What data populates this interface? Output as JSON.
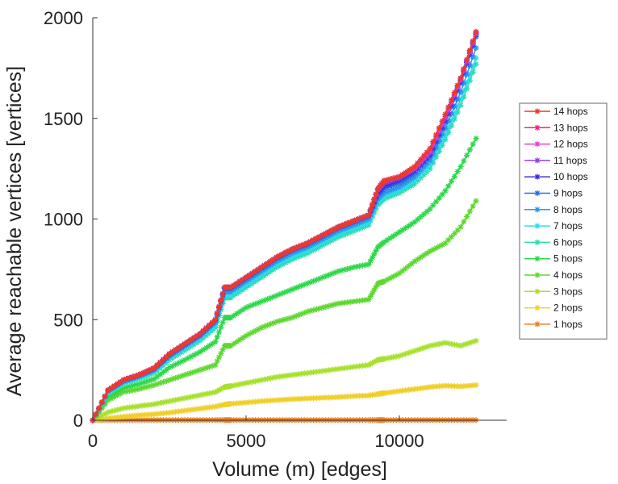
{
  "chart_data": {
    "type": "line",
    "xlabel": "Volume (m) [edges]",
    "ylabel": "Average reachable vertices [vertices]",
    "xlim": [
      0,
      13500
    ],
    "ylim": [
      0,
      2000
    ],
    "xticks": [
      0,
      5000,
      10000
    ],
    "yticks": [
      0,
      500,
      1000,
      1500,
      2000
    ],
    "grid": false,
    "legend_position": "right",
    "marker": "star",
    "x": [
      0,
      500,
      1000,
      1500,
      2000,
      2500,
      3000,
      3500,
      4000,
      4300,
      4500,
      5000,
      5500,
      6000,
      6500,
      7000,
      7500,
      8000,
      8500,
      9000,
      9300,
      9500,
      10000,
      10500,
      11000,
      11500,
      12000,
      12500
    ],
    "series": [
      {
        "name": "14 hops",
        "color": "#e83a2e",
        "values": [
          0,
          150,
          200,
          225,
          260,
          330,
          380,
          430,
          500,
          660,
          660,
          710,
          760,
          810,
          850,
          880,
          920,
          960,
          990,
          1020,
          1150,
          1190,
          1210,
          1260,
          1350,
          1520,
          1700,
          1930
        ]
      },
      {
        "name": "13 hops",
        "color": "#e8277c",
        "values": [
          0,
          150,
          200,
          225,
          260,
          330,
          380,
          430,
          500,
          660,
          660,
          710,
          760,
          810,
          850,
          880,
          920,
          960,
          990,
          1020,
          1150,
          1190,
          1210,
          1260,
          1350,
          1520,
          1700,
          1930
        ]
      },
      {
        "name": "12 hops",
        "color": "#e83fd8",
        "values": [
          0,
          150,
          200,
          225,
          260,
          330,
          380,
          430,
          500,
          660,
          660,
          710,
          760,
          810,
          850,
          880,
          920,
          960,
          990,
          1020,
          1150,
          1190,
          1210,
          1255,
          1340,
          1510,
          1695,
          1925
        ]
      },
      {
        "name": "11 hops",
        "color": "#9a3ee0",
        "values": [
          0,
          150,
          200,
          225,
          260,
          330,
          380,
          430,
          500,
          660,
          660,
          710,
          760,
          810,
          850,
          880,
          920,
          960,
          990,
          1020,
          1145,
          1180,
          1205,
          1250,
          1330,
          1500,
          1690,
          1920
        ]
      },
      {
        "name": "10 hops",
        "color": "#3a30d8",
        "values": [
          0,
          150,
          200,
          225,
          258,
          328,
          378,
          428,
          498,
          658,
          658,
          708,
          758,
          808,
          848,
          878,
          918,
          958,
          988,
          1018,
          1130,
          1165,
          1195,
          1240,
          1320,
          1490,
          1685,
          1915
        ]
      },
      {
        "name": "9 hops",
        "color": "#2c6ae0",
        "values": [
          0,
          148,
          197,
          222,
          255,
          325,
          375,
          425,
          495,
          655,
          655,
          705,
          755,
          805,
          845,
          875,
          915,
          955,
          985,
          1015,
          1120,
          1150,
          1180,
          1230,
          1310,
          1480,
          1675,
          1905
        ]
      },
      {
        "name": "8 hops",
        "color": "#2e95e6",
        "values": [
          0,
          145,
          193,
          218,
          250,
          318,
          368,
          418,
          485,
          640,
          640,
          690,
          740,
          790,
          830,
          860,
          900,
          940,
          970,
          1000,
          1100,
          1130,
          1160,
          1210,
          1290,
          1450,
          1630,
          1850
        ]
      },
      {
        "name": "7 hops",
        "color": "#2cdcee",
        "values": [
          0,
          140,
          188,
          212,
          243,
          310,
          358,
          408,
          472,
          625,
          625,
          675,
          725,
          775,
          815,
          845,
          885,
          925,
          955,
          985,
          1085,
          1115,
          1145,
          1195,
          1270,
          1420,
          1595,
          1800
        ]
      },
      {
        "name": "6 hops",
        "color": "#2cdcae",
        "values": [
          0,
          135,
          182,
          205,
          235,
          300,
          348,
          396,
          460,
          610,
          610,
          660,
          710,
          760,
          800,
          830,
          870,
          910,
          940,
          970,
          1070,
          1100,
          1130,
          1175,
          1250,
          1395,
          1565,
          1770
        ]
      },
      {
        "name": "5 hops",
        "color": "#2ed84a",
        "values": [
          0,
          115,
          160,
          180,
          205,
          262,
          300,
          340,
          390,
          510,
          510,
          560,
          590,
          620,
          650,
          680,
          710,
          740,
          760,
          775,
          860,
          885,
          935,
          985,
          1050,
          1140,
          1260,
          1400
        ]
      },
      {
        "name": "4 hops",
        "color": "#5ed830",
        "values": [
          0,
          100,
          140,
          155,
          175,
          200,
          225,
          250,
          275,
          370,
          370,
          420,
          460,
          490,
          510,
          540,
          560,
          580,
          590,
          600,
          680,
          690,
          730,
          790,
          840,
          880,
          960,
          1090
        ]
      },
      {
        "name": "3 hops",
        "color": "#a8e02e",
        "values": [
          0,
          40,
          60,
          70,
          80,
          95,
          110,
          125,
          140,
          165,
          170,
          185,
          200,
          215,
          225,
          235,
          245,
          255,
          265,
          275,
          300,
          305,
          320,
          345,
          370,
          385,
          370,
          395
        ]
      },
      {
        "name": "2 hops",
        "color": "#f0cf2a",
        "values": [
          0,
          10,
          18,
          25,
          30,
          38,
          48,
          58,
          68,
          78,
          82,
          88,
          95,
          100,
          105,
          108,
          112,
          115,
          120,
          123,
          130,
          135,
          145,
          155,
          165,
          172,
          168,
          175
        ]
      },
      {
        "name": "1 hops",
        "color": "#ef7f21",
        "values": [
          0,
          1,
          1,
          1,
          1,
          1,
          1,
          1,
          1,
          1,
          1,
          1,
          1,
          1,
          1,
          1,
          1,
          1,
          1,
          1,
          1,
          1,
          1,
          1,
          1,
          1,
          1,
          1
        ]
      }
    ]
  }
}
